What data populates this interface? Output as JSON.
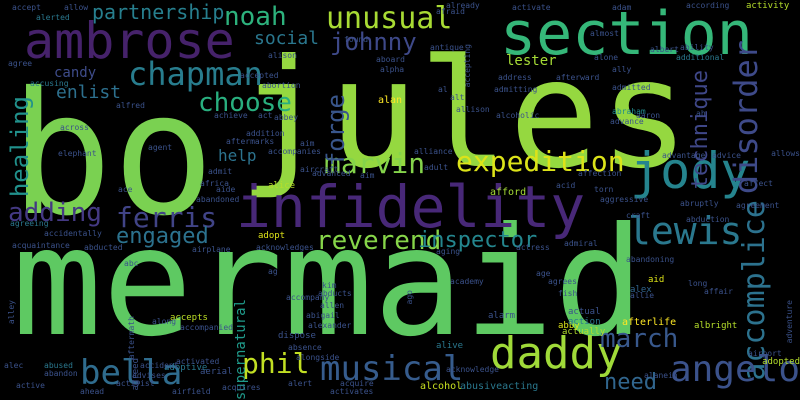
{
  "background": "#000000",
  "words": [
    {
      "text": "mermaid",
      "color": "#5ec962"
    },
    {
      "text": "jules",
      "color": "#95d840"
    },
    {
      "text": "bo",
      "color": "#7ad151"
    },
    {
      "text": "infidelity",
      "color": "#482878"
    },
    {
      "text": "section",
      "color": "#35b779"
    },
    {
      "text": "ambrose",
      "color": "#46226b"
    },
    {
      "text": "jody",
      "color": "#25848e"
    },
    {
      "text": "daddy",
      "color": "#a0da39"
    },
    {
      "text": "expedition",
      "color": "#dce319"
    },
    {
      "text": "lewis",
      "color": "#2a788e"
    },
    {
      "text": "accomplice",
      "color": "#2c728e"
    },
    {
      "text": "disorder",
      "color": "#3e4a89"
    },
    {
      "text": "angelo",
      "color": "#3b528b"
    },
    {
      "text": "chapman",
      "color": "#287d8e"
    },
    {
      "text": "unusual",
      "color": "#a8db34"
    },
    {
      "text": "marvin",
      "color": "#84d44b"
    },
    {
      "text": "reverend",
      "color": "#86d549"
    },
    {
      "text": "johnny",
      "color": "#3e4989"
    },
    {
      "text": "noah",
      "color": "#2db27d"
    },
    {
      "text": "choose",
      "color": "#29af7f"
    },
    {
      "text": "ferris",
      "color": "#414487"
    },
    {
      "text": "bella",
      "color": "#2f6c8e"
    },
    {
      "text": "musical",
      "color": "#365c8d"
    },
    {
      "text": "adding",
      "color": "#443983"
    },
    {
      "text": "engaged",
      "color": "#2c728e"
    },
    {
      "text": "healing",
      "color": "#21918c"
    },
    {
      "text": "march",
      "color": "#38588c"
    },
    {
      "text": "phil",
      "color": "#c2df23"
    },
    {
      "text": "forge",
      "color": "#39568c"
    },
    {
      "text": "technique",
      "color": "#3f4788"
    },
    {
      "text": "inspector",
      "color": "#24868e"
    },
    {
      "text": "partnership",
      "color": "#277f8e"
    },
    {
      "text": "enlist",
      "color": "#2d708e"
    },
    {
      "text": "social",
      "color": "#2a778e"
    },
    {
      "text": "help",
      "color": "#2c738e"
    },
    {
      "text": "need",
      "color": "#31668e"
    },
    {
      "text": "candy",
      "color": "#3e4c8a"
    },
    {
      "text": "supernatural",
      "color": "#1f9a8a"
    },
    {
      "text": "lester",
      "color": "#a5db36"
    },
    {
      "text": "afterlife",
      "color": "#fde725"
    },
    {
      "text": "alan",
      "color": "#fde725"
    },
    {
      "text": "alcohol",
      "color": "#c8e020"
    },
    {
      "text": "abusiveacting",
      "color": "#2a788e"
    },
    {
      "text": "abby",
      "color": "#dde318"
    },
    {
      "text": "afford",
      "color": "#a5db36"
    },
    {
      "text": "actually",
      "color": "#b2dd2d"
    },
    {
      "text": "aid",
      "color": "#dde318"
    },
    {
      "text": "adopt",
      "color": "#dde318"
    },
    {
      "text": "alex",
      "color": "#31668e"
    },
    {
      "text": "abraham",
      "color": "#228b8d"
    },
    {
      "text": "albright",
      "color": "#b5de2b"
    },
    {
      "text": "accepts",
      "color": "#bddf26"
    },
    {
      "text": "action",
      "color": "#2a788e"
    },
    {
      "text": "actual",
      "color": "#3b528b"
    },
    {
      "text": "alarm",
      "color": "#3b528b"
    },
    {
      "text": "alive",
      "color": "#2a788e"
    },
    {
      "text": "aerial",
      "color": "#3b528b"
    },
    {
      "text": "agreed",
      "color": "#3b528b"
    },
    {
      "text": "adoptive",
      "color": "#2a788e"
    },
    {
      "text": "afraid",
      "color": "#3b528b"
    },
    {
      "text": "already",
      "color": "#3b528b"
    },
    {
      "text": "activity",
      "color": "#b5de2b"
    },
    {
      "text": "ability",
      "color": "#3b528b"
    },
    {
      "text": "additional",
      "color": "#2a788e"
    },
    {
      "text": "according",
      "color": "#3b528b"
    },
    {
      "text": "accept",
      "color": "#3b528b"
    },
    {
      "text": "alerted",
      "color": "#2a788e"
    },
    {
      "text": "allow",
      "color": "#3b528b"
    },
    {
      "text": "agree",
      "color": "#3b528b"
    },
    {
      "text": "accusing",
      "color": "#2a788e"
    },
    {
      "text": "accidentally",
      "color": "#3b528b"
    },
    {
      "text": "agreeing",
      "color": "#2a788e"
    },
    {
      "text": "acquaintance",
      "color": "#3b528b"
    },
    {
      "text": "abused",
      "color": "#2a788e"
    },
    {
      "text": "alley",
      "color": "#3b528b"
    },
    {
      "text": "alec",
      "color": "#3b528b"
    },
    {
      "text": "active",
      "color": "#3b528b"
    },
    {
      "text": "abandon",
      "color": "#3b528b"
    },
    {
      "text": "ahead",
      "color": "#3b528b"
    },
    {
      "text": "activist",
      "color": "#3b528b"
    },
    {
      "text": "airfield",
      "color": "#3b528b"
    },
    {
      "text": "acquires",
      "color": "#3b528b"
    },
    {
      "text": "alert",
      "color": "#3b528b"
    },
    {
      "text": "activates",
      "color": "#3b528b"
    },
    {
      "text": "acknowledge",
      "color": "#3b528b"
    },
    {
      "text": "adopted",
      "color": "#b5de2b"
    },
    {
      "text": "adventure",
      "color": "#3b528b"
    },
    {
      "text": "airport",
      "color": "#3b528b"
    },
    {
      "text": "alanein",
      "color": "#3b528b"
    },
    {
      "text": "alfred",
      "color": "#3b528b"
    },
    {
      "text": "alice",
      "color": "#b5de2b"
    },
    {
      "text": "addition",
      "color": "#3b528b"
    },
    {
      "text": "aftermath",
      "color": "#3b528b"
    },
    {
      "text": "advanced",
      "color": "#3b528b"
    },
    {
      "text": "affection",
      "color": "#3b528b"
    },
    {
      "text": "aggressive",
      "color": "#3b528b"
    },
    {
      "text": "admiral",
      "color": "#3b528b"
    },
    {
      "text": "actress",
      "color": "#3b528b"
    },
    {
      "text": "aging",
      "color": "#3b528b"
    },
    {
      "text": "academy",
      "color": "#3b528b"
    },
    {
      "text": "alison",
      "color": "#3b528b"
    },
    {
      "text": "alpha",
      "color": "#3b528b"
    },
    {
      "text": "aboard",
      "color": "#3b528b"
    },
    {
      "text": "admitting",
      "color": "#3b528b"
    },
    {
      "text": "alcoholic",
      "color": "#3b528b"
    },
    {
      "text": "allison",
      "color": "#3b528b"
    },
    {
      "text": "address",
      "color": "#3b528b"
    },
    {
      "text": "admitted",
      "color": "#3b528b"
    },
    {
      "text": "ally",
      "color": "#3b528b"
    },
    {
      "text": "albert",
      "color": "#3b528b"
    },
    {
      "text": "afterward",
      "color": "#3b528b"
    },
    {
      "text": "almost",
      "color": "#3b528b"
    },
    {
      "text": "activate",
      "color": "#3b528b"
    },
    {
      "text": "abortion",
      "color": "#3b528b"
    },
    {
      "text": "accepted",
      "color": "#3b528b"
    },
    {
      "text": "achieve",
      "color": "#3b528b"
    },
    {
      "text": "abbey",
      "color": "#3b528b"
    },
    {
      "text": "act",
      "color": "#3b528b"
    },
    {
      "text": "aftermarks",
      "color": "#3b528b"
    },
    {
      "text": "accompanies",
      "color": "#3b528b"
    },
    {
      "text": "aircraft",
      "color": "#3b528b"
    },
    {
      "text": "aim",
      "color": "#3b528b"
    },
    {
      "text": "alliance",
      "color": "#3b528b"
    },
    {
      "text": "adult",
      "color": "#3b528b"
    },
    {
      "text": "acid",
      "color": "#3b528b"
    },
    {
      "text": "torn",
      "color": "#3b528b"
    },
    {
      "text": "abduction",
      "color": "#3b528b"
    },
    {
      "text": "abandoning",
      "color": "#3b528b"
    },
    {
      "text": "affair",
      "color": "#3b528b"
    },
    {
      "text": "age",
      "color": "#3b528b"
    },
    {
      "text": "agrees",
      "color": "#3b528b"
    },
    {
      "text": "fish",
      "color": "#3b528b"
    },
    {
      "text": "allie",
      "color": "#3b528b"
    },
    {
      "text": "along",
      "color": "#3b528b"
    },
    {
      "text": "abandoned",
      "color": "#3b528b"
    },
    {
      "text": "acknowledges",
      "color": "#3b528b"
    },
    {
      "text": "abducted",
      "color": "#3b528b"
    },
    {
      "text": "airplane",
      "color": "#3b528b"
    },
    {
      "text": "accompany",
      "color": "#3b528b"
    },
    {
      "text": "abducts",
      "color": "#3b528b"
    },
    {
      "text": "allen",
      "color": "#3b528b"
    },
    {
      "text": "abigail",
      "color": "#3b528b"
    },
    {
      "text": "alexander",
      "color": "#3b528b"
    },
    {
      "text": "accompanied",
      "color": "#3b528b"
    },
    {
      "text": "dispose",
      "color": "#3b528b"
    },
    {
      "text": "absence",
      "color": "#3b528b"
    },
    {
      "text": "alongside",
      "color": "#3b528b"
    },
    {
      "text": "activated",
      "color": "#3b528b"
    },
    {
      "text": "accident",
      "color": "#3b528b"
    },
    {
      "text": "advises",
      "color": "#3b528b"
    },
    {
      "text": "acquire",
      "color": "#3b528b"
    },
    {
      "text": "advantage",
      "color": "#3b528b"
    },
    {
      "text": "advice",
      "color": "#3b528b"
    },
    {
      "text": "agreement",
      "color": "#3b528b"
    },
    {
      "text": "affect",
      "color": "#3b528b"
    },
    {
      "text": "abruptly",
      "color": "#3b528b"
    },
    {
      "text": "craft",
      "color": "#3b528b"
    },
    {
      "text": "advance",
      "color": "#3b528b"
    },
    {
      "text": "aaron",
      "color": "#3b528b"
    },
    {
      "text": "ah",
      "color": "#3b528b"
    },
    {
      "text": "allows",
      "color": "#3b528b"
    },
    {
      "text": "agent",
      "color": "#3b528b"
    },
    {
      "text": "across",
      "color": "#3b528b"
    },
    {
      "text": "elephant",
      "color": "#3b528b"
    },
    {
      "text": "antique",
      "color": "#3b528b"
    },
    {
      "text": "accepting",
      "color": "#3b528b"
    },
    {
      "text": "found",
      "color": "#3b528b"
    },
    {
      "text": "alone",
      "color": "#3b528b"
    },
    {
      "text": "adam",
      "color": "#3b528b"
    },
    {
      "text": "al",
      "color": "#3b528b"
    },
    {
      "text": "alt",
      "color": "#3b528b"
    },
    {
      "text": "aim",
      "color": "#3b528b"
    },
    {
      "text": "admit",
      "color": "#3b528b"
    },
    {
      "text": "africa",
      "color": "#3b528b"
    },
    {
      "text": "aide",
      "color": "#3b528b"
    },
    {
      "text": "ace",
      "color": "#3b528b"
    },
    {
      "text": "abc",
      "color": "#3b528b"
    },
    {
      "text": "kim",
      "color": "#3b528b"
    },
    {
      "text": "ago",
      "color": "#3b528b"
    },
    {
      "text": "ag",
      "color": "#3b528b"
    },
    {
      "text": "long",
      "color": "#3b528b"
    }
  ]
}
